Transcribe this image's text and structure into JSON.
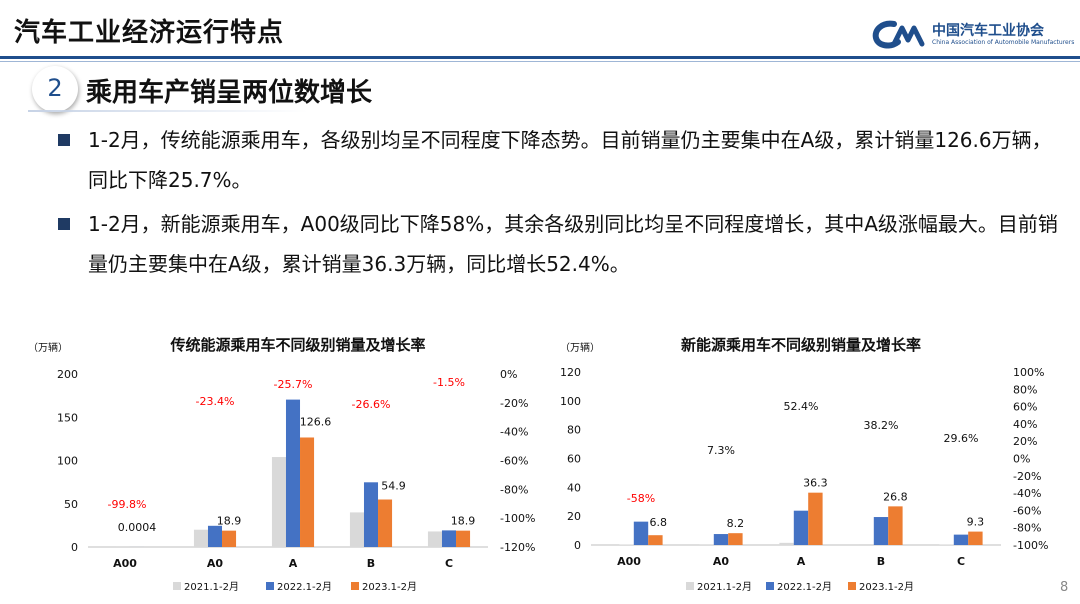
{
  "header": {
    "title": "汽车工业经济运行特点",
    "logo_cn": "中国汽车工业协会",
    "logo_en": "China Association of Automobile Manufacturers"
  },
  "section": {
    "number": "2",
    "title": "乘用车产销呈两位数增长"
  },
  "bullets": [
    "1-2月，传统能源乘用车，各级别均呈不同程度下降态势。目前销量仍主要集中在A级，累计销量126.6万辆，同比下降25.7%。",
    "1-2月，新能源乘用车，A00级同比下降58%，其余各级别同比均呈不同程度增长，其中A级涨幅最大。目前销量仍主要集中在A级，累计销量36.3万辆，同比增长52.4%。"
  ],
  "page_number": "8",
  "colors": {
    "s2021": "#d9d9d9",
    "s2022": "#4472c4",
    "s2023": "#ed7d31",
    "negative": "#ff0000",
    "positive": "#111111"
  },
  "chart_data": [
    {
      "type": "bar",
      "title": "传统能源乘用车不同级别销量及增长率",
      "unit_label": "（万辆）",
      "categories": [
        "A00",
        "A0",
        "A",
        "B",
        "C"
      ],
      "series": [
        {
          "name": "2021.1-2月",
          "values": [
            0.02,
            20,
            104,
            40,
            18
          ]
        },
        {
          "name": "2022.1-2月",
          "values": [
            0.03,
            24.5,
            170.4,
            74.8,
            19.2
          ]
        },
        {
          "name": "2023.1-2月",
          "values": [
            0.0004,
            18.9,
            126.6,
            54.9,
            18.9
          ]
        }
      ],
      "value_labels": [
        "0.0004",
        "18.9",
        "126.6",
        "54.9",
        "18.9"
      ],
      "growth_labels": [
        "-99.8%",
        "-23.4%",
        "-25.7%",
        "-26.6%",
        "-1.5%"
      ],
      "growth_values": [
        -99.8,
        -23.4,
        -25.7,
        -26.6,
        -1.5
      ],
      "ylim": [
        0,
        200
      ],
      "yticks": [
        "0",
        "50",
        "100",
        "150",
        "200"
      ],
      "y2lim": [
        -120,
        0
      ],
      "y2ticks": [
        "0%",
        "-20%",
        "-40%",
        "-60%",
        "-80%",
        "-100%",
        "-120%"
      ],
      "legend_position": "bottom"
    },
    {
      "type": "bar",
      "title": "新能源乘用车不同级别销量及增长率",
      "unit_label": "（万辆）",
      "categories": [
        "A00",
        "A0",
        "A",
        "B",
        "C"
      ],
      "series": [
        {
          "name": "2021.1-2月",
          "values": [
            0.3,
            0.5,
            1.5,
            0.6,
            0.4
          ]
        },
        {
          "name": "2022.1-2月",
          "values": [
            16.2,
            7.6,
            23.8,
            19.4,
            7.2
          ]
        },
        {
          "name": "2023.1-2月",
          "values": [
            6.8,
            8.2,
            36.3,
            26.8,
            9.3
          ]
        }
      ],
      "value_labels": [
        "6.8",
        "8.2",
        "36.3",
        "26.8",
        "9.3"
      ],
      "growth_labels": [
        "-58%",
        "7.3%",
        "52.4%",
        "38.2%",
        "29.6%"
      ],
      "growth_values": [
        -58,
        7.3,
        52.4,
        38.2,
        29.6
      ],
      "ylim": [
        0,
        120
      ],
      "yticks": [
        "0",
        "20",
        "40",
        "60",
        "80",
        "100",
        "120"
      ],
      "y2lim": [
        -100,
        100
      ],
      "y2ticks": [
        "100%",
        "80%",
        "60%",
        "40%",
        "20%",
        "0%",
        "-20%",
        "-40%",
        "-60%",
        "-80%",
        "-100%"
      ],
      "legend_position": "bottom"
    }
  ]
}
